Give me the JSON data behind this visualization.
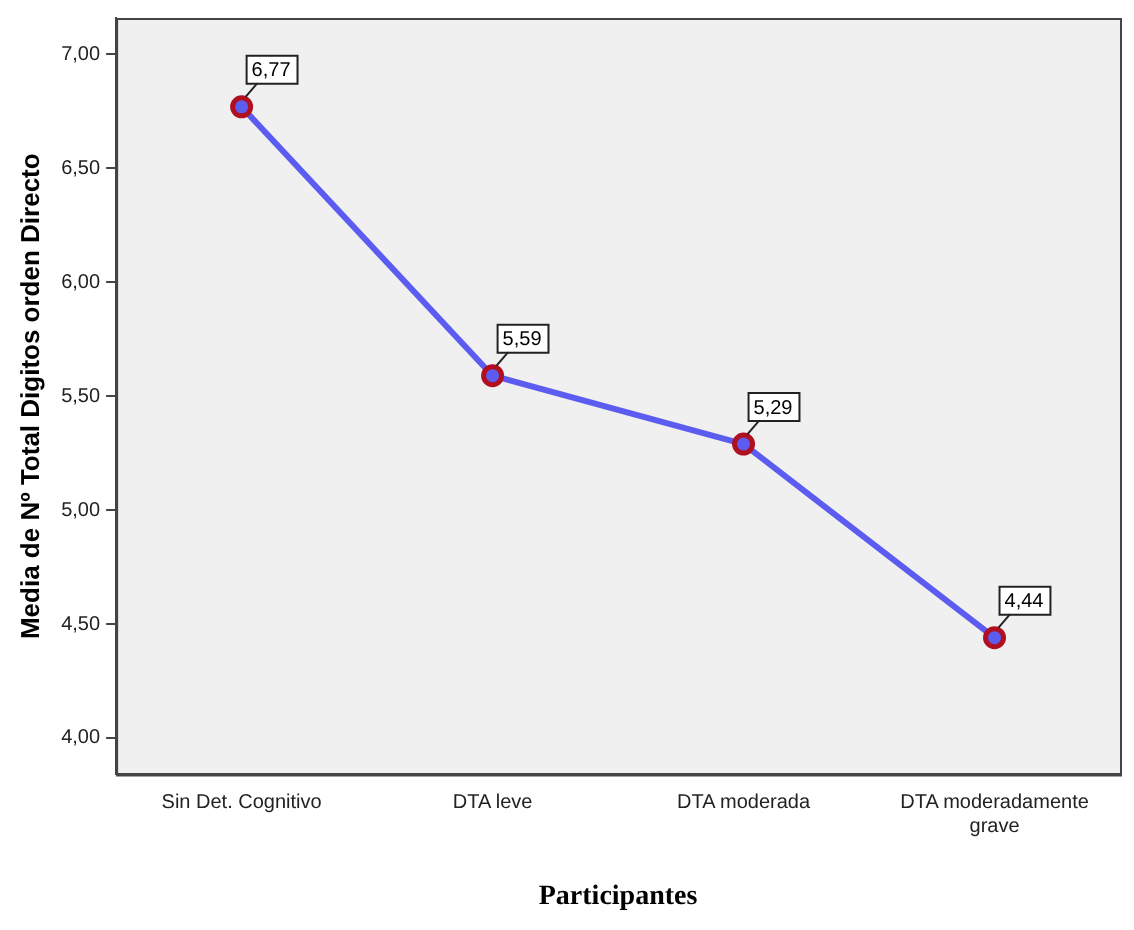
{
  "chart_data": {
    "type": "line",
    "xlabel": "Participantes",
    "ylabel": "Media de Nº Total Digitos orden Directo",
    "categories": [
      "Sin Det. Cognitivo",
      "DTA leve",
      "DTA moderada",
      "DTA moderadamente grave"
    ],
    "series": [
      {
        "color": "#5c5cf0",
        "values": [
          6.77,
          5.59,
          5.29,
          4.44
        ],
        "value_labels": [
          "6,77",
          "5,59",
          "5,29",
          "4,44"
        ]
      }
    ],
    "ylim": [
      3.84,
      7.16
    ],
    "yticks": [
      {
        "value": 4,
        "label": "4,00"
      },
      {
        "value": 4.5,
        "label": "4,50"
      },
      {
        "value": 5,
        "label": "5,00"
      },
      {
        "value": 5.5,
        "label": "5,50"
      },
      {
        "value": 6,
        "label": "6,00"
      },
      {
        "value": 6.5,
        "label": "6,50"
      },
      {
        "value": 7,
        "label": "7,00"
      }
    ],
    "grid": false,
    "legend": false,
    "marker": "circle",
    "line_style": "solid"
  }
}
